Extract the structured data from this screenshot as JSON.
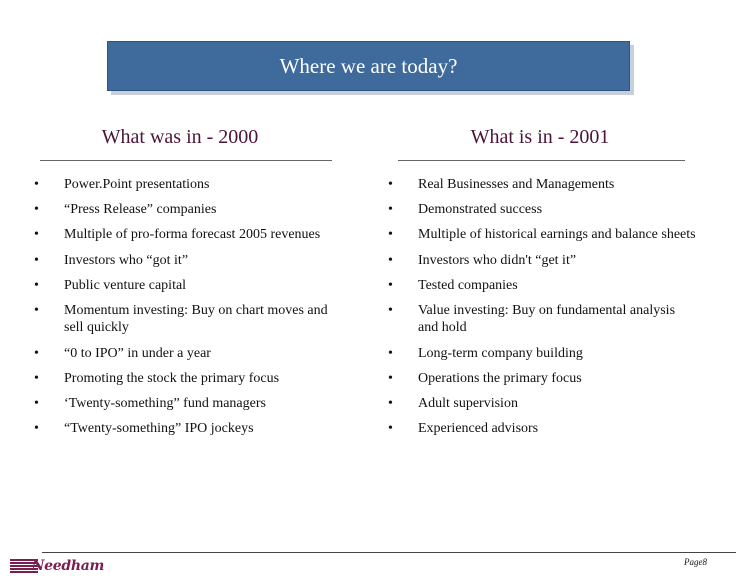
{
  "slide": {
    "title": "Where we are today?",
    "page_label": "Page8"
  },
  "brand": {
    "logo_text": "Needham",
    "color": "#7a1d4f"
  },
  "colors": {
    "title_bg": "#3f6a9c",
    "heading": "#4a1638"
  },
  "left": {
    "heading": "What was in - 2000",
    "items": [
      "Power.Point presentations",
      "“Press Release” companies",
      "Multiple of pro-forma forecast 2005 revenues",
      "Investors who “got it”",
      "Public venture capital",
      "Momentum investing: Buy on chart moves and sell quickly",
      "“0 to IPO” in under a year",
      "Promoting the stock the primary focus",
      "‘Twenty-something” fund managers",
      "“Twenty-something” IPO jockeys"
    ]
  },
  "right": {
    "heading": "What is in - 2001",
    "items": [
      "Real Businesses and Managements",
      "Demonstrated success",
      "Multiple of historical earnings and balance sheets",
      "Investors who didn't “get it”",
      "Tested companies",
      "Value investing: Buy on fundamental analysis and hold",
      "Long-term company building",
      "Operations the primary focus",
      "Adult supervision",
      "Experienced advisors"
    ]
  }
}
